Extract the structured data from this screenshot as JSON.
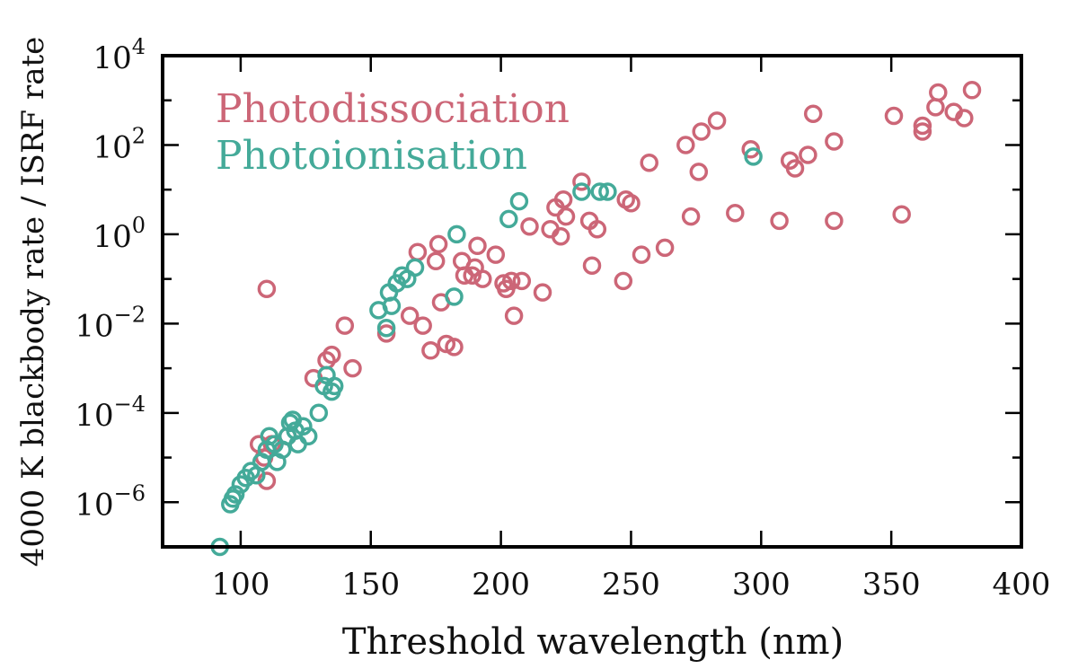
{
  "chart_data": {
    "type": "scatter",
    "title": "",
    "xlabel": "Threshold wavelength (nm)",
    "ylabel": "4000 K blackbody rate / ISRF rate",
    "xlim": [
      70,
      400
    ],
    "ylim_log10": [
      -7,
      4
    ],
    "yscale": "log",
    "grid": false,
    "legend_placement": "top-left",
    "x_ticks": [
      100,
      150,
      200,
      250,
      300,
      350,
      400
    ],
    "x_tick_labels": [
      "100",
      "150",
      "200",
      "250",
      "300",
      "350",
      "400"
    ],
    "y_ticks_log10": [
      -6,
      -4,
      -2,
      0,
      2,
      4
    ],
    "y_tick_labels": [
      {
        "base": "10",
        "exp": "−6"
      },
      {
        "base": "10",
        "exp": "−4"
      },
      {
        "base": "10",
        "exp": "−2"
      },
      {
        "base": "10",
        "exp": "0"
      },
      {
        "base": "10",
        "exp": "2"
      },
      {
        "base": "10",
        "exp": "4"
      }
    ],
    "series": [
      {
        "name": "Photodissociation",
        "color": "#CC6677",
        "points": [
          [
            110,
            0.06
          ],
          [
            107,
            2e-05
          ],
          [
            109,
            1e-05
          ],
          [
            110,
            3e-06
          ],
          [
            112,
            2e-05
          ],
          [
            118,
            3e-05
          ],
          [
            128,
            0.0006
          ],
          [
            133,
            0.0015
          ],
          [
            135,
            0.002
          ],
          [
            140,
            0.009
          ],
          [
            143,
            0.001
          ],
          [
            156,
            0.006
          ],
          [
            165,
            0.015
          ],
          [
            168,
            0.4
          ],
          [
            170,
            0.009
          ],
          [
            173,
            0.0025
          ],
          [
            175,
            0.25
          ],
          [
            176,
            0.6
          ],
          [
            177,
            0.03
          ],
          [
            179,
            0.0035
          ],
          [
            182,
            0.003
          ],
          [
            185,
            0.25
          ],
          [
            186,
            0.12
          ],
          [
            189,
            0.12
          ],
          [
            190,
            0.18
          ],
          [
            191,
            0.55
          ],
          [
            193,
            0.1
          ],
          [
            198,
            0.35
          ],
          [
            201,
            0.08
          ],
          [
            202,
            0.06
          ],
          [
            204,
            0.09
          ],
          [
            205,
            0.015
          ],
          [
            208,
            0.09
          ],
          [
            211,
            1.5
          ],
          [
            216,
            0.05
          ],
          [
            219,
            1.3
          ],
          [
            221,
            4
          ],
          [
            223,
            0.9
          ],
          [
            224,
            6
          ],
          [
            225,
            2.5
          ],
          [
            231,
            15
          ],
          [
            234,
            2
          ],
          [
            235,
            0.2
          ],
          [
            237,
            1.3
          ],
          [
            247,
            0.09
          ],
          [
            248,
            6
          ],
          [
            250,
            5
          ],
          [
            254,
            0.35
          ],
          [
            257,
            40
          ],
          [
            263,
            0.5
          ],
          [
            271,
            100
          ],
          [
            273,
            2.5
          ],
          [
            276,
            25
          ],
          [
            277,
            200
          ],
          [
            283,
            350
          ],
          [
            290,
            3
          ],
          [
            296,
            80
          ],
          [
            307,
            2
          ],
          [
            311,
            45
          ],
          [
            313,
            30
          ],
          [
            318,
            60
          ],
          [
            320,
            500
          ],
          [
            328,
            120
          ],
          [
            328,
            2
          ],
          [
            351,
            450
          ],
          [
            354,
            2.8
          ],
          [
            362,
            200
          ],
          [
            362,
            270
          ],
          [
            367,
            700
          ],
          [
            368,
            1500
          ],
          [
            374,
            550
          ],
          [
            378,
            400
          ],
          [
            381,
            1700
          ]
        ]
      },
      {
        "name": "Photoionisation",
        "color": "#44AA99",
        "points": [
          [
            92,
            1e-07
          ],
          [
            96,
            9e-07
          ],
          [
            97,
            1.2e-06
          ],
          [
            98,
            1.5e-06
          ],
          [
            100,
            2.5e-06
          ],
          [
            102,
            3.5e-06
          ],
          [
            104,
            5e-06
          ],
          [
            106,
            4e-06
          ],
          [
            108,
            8e-06
          ],
          [
            110,
            1.5e-05
          ],
          [
            111,
            3e-05
          ],
          [
            113,
            2e-05
          ],
          [
            114,
            8e-06
          ],
          [
            116,
            1.5e-05
          ],
          [
            118,
            3e-05
          ],
          [
            119,
            6e-05
          ],
          [
            120,
            7e-05
          ],
          [
            121,
            4e-05
          ],
          [
            122,
            2e-05
          ],
          [
            124,
            5e-05
          ],
          [
            126,
            3e-05
          ],
          [
            130,
            0.0001
          ],
          [
            132,
            0.0004
          ],
          [
            133,
            0.0007
          ],
          [
            135,
            0.0003
          ],
          [
            136,
            0.0004
          ],
          [
            153,
            0.02
          ],
          [
            156,
            0.008
          ],
          [
            157,
            0.05
          ],
          [
            158,
            0.025
          ],
          [
            160,
            0.08
          ],
          [
            162,
            0.12
          ],
          [
            164,
            0.1
          ],
          [
            167,
            0.18
          ],
          [
            182,
            0.04
          ],
          [
            183,
            1
          ],
          [
            203,
            2.2
          ],
          [
            207,
            5.5
          ],
          [
            231,
            9
          ],
          [
            238,
            9
          ],
          [
            241,
            9
          ],
          [
            297,
            55
          ]
        ]
      }
    ]
  }
}
